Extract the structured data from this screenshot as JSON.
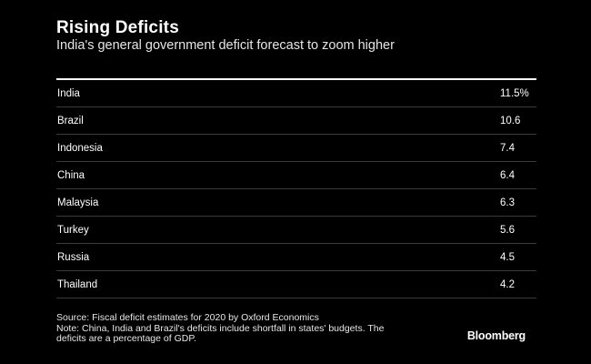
{
  "chart_data": {
    "type": "table",
    "title": "Rising Deficits",
    "subtitle": "India's general government deficit forecast to zoom higher",
    "rows": [
      {
        "country": "India",
        "value": "11.5%"
      },
      {
        "country": "Brazil",
        "value": "10.6"
      },
      {
        "country": "Indonesia",
        "value": "7.4"
      },
      {
        "country": "China",
        "value": "6.4"
      },
      {
        "country": "Malaysia",
        "value": "6.3"
      },
      {
        "country": "Turkey",
        "value": "5.6"
      },
      {
        "country": "Russia",
        "value": "4.5"
      },
      {
        "country": "Thailand",
        "value": "4.2"
      }
    ],
    "source": "Source: Fiscal deficit estimates for 2020 by Oxford Economics",
    "note_line1": "Note: China, India and Brazil's deficits include shortfall in states' budgets. The",
    "note_line2": "deficits are a percentage of GDP.",
    "brand": "Bloomberg"
  }
}
